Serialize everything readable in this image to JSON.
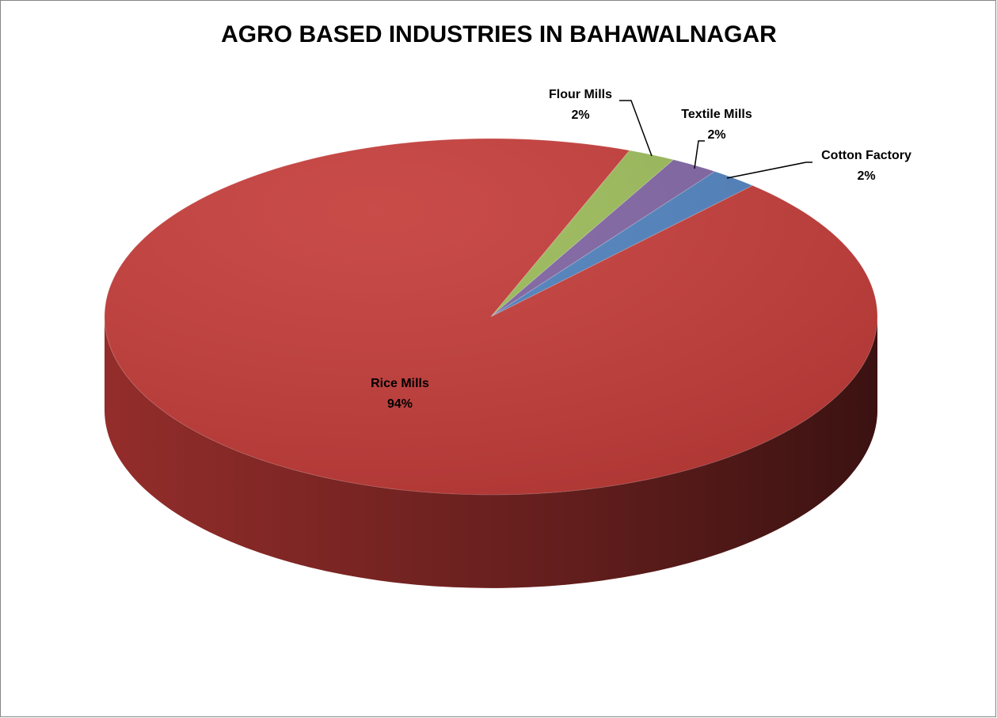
{
  "chart_data": {
    "type": "pie",
    "title": "AGRO BASED INDUSTRIES IN BAHAWALNAGAR",
    "categories": [
      "Flour Mills",
      "Textile Mills",
      "Cotton Factory",
      "Rice Mills"
    ],
    "values": [
      2,
      2,
      2,
      94
    ],
    "value_labels": [
      "2%",
      "2%",
      "2%",
      "94%"
    ],
    "colors": [
      "#9bbb59",
      "#8064a2",
      "#4f81bd",
      "#c43c39"
    ]
  }
}
